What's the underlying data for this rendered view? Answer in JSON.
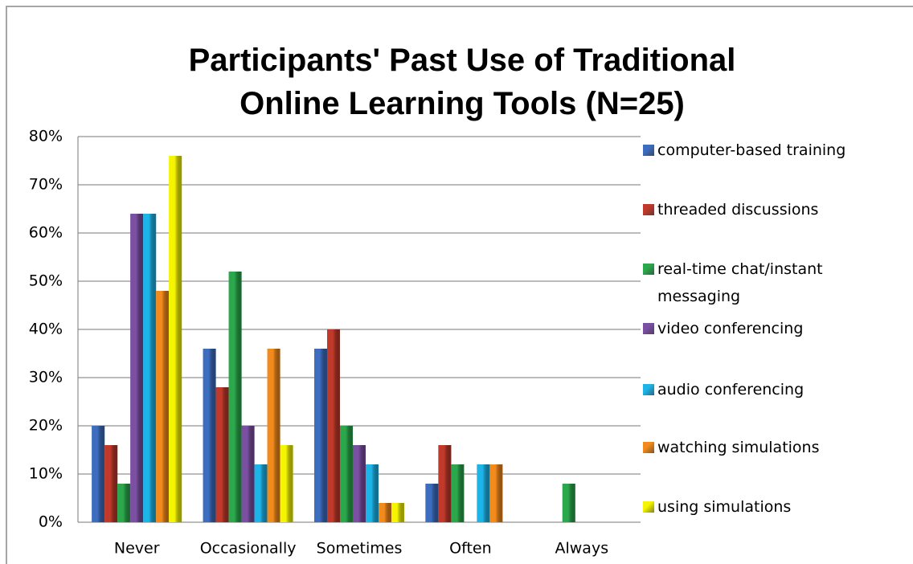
{
  "chart_data": {
    "type": "bar",
    "title": "Participants' Past Use of Traditional Online Learning Tools (N=25)",
    "categories": [
      "Never",
      "Occasionally",
      "Sometimes",
      "Often",
      "Always"
    ],
    "series": [
      {
        "name": "computer-based training",
        "color": "#3d6dbf",
        "values": [
          20,
          36,
          36,
          8,
          0
        ]
      },
      {
        "name": "threaded discussions",
        "color": "#c0392b",
        "values": [
          16,
          28,
          40,
          16,
          0
        ]
      },
      {
        "name": "real-time chat/instant messaging",
        "color": "#2ca84c",
        "values": [
          8,
          52,
          20,
          12,
          8
        ]
      },
      {
        "name": "video conferencing",
        "color": "#7b4fa2",
        "values": [
          64,
          20,
          16,
          0,
          0
        ]
      },
      {
        "name": "audio conferencing",
        "color": "#1db4e8",
        "values": [
          64,
          12,
          12,
          12,
          0
        ]
      },
      {
        "name": "watching simulations",
        "color": "#f28a1c",
        "values": [
          48,
          36,
          4,
          12,
          0
        ]
      },
      {
        "name": "using simulations",
        "color": "#f5f500",
        "values": [
          76,
          16,
          4,
          0,
          0
        ]
      }
    ],
    "ylim": [
      0,
      80
    ],
    "yticks": [
      {
        "value": 0,
        "label": "0%"
      },
      {
        "value": 10,
        "label": "10%"
      },
      {
        "value": 20,
        "label": "20%"
      },
      {
        "value": 30,
        "label": "30%"
      },
      {
        "value": 40,
        "label": "40%"
      },
      {
        "value": 50,
        "label": "50%"
      },
      {
        "value": 60,
        "label": "60%"
      },
      {
        "value": 70,
        "label": "70%"
      },
      {
        "value": 80,
        "label": "80%"
      }
    ],
    "grid": true
  }
}
